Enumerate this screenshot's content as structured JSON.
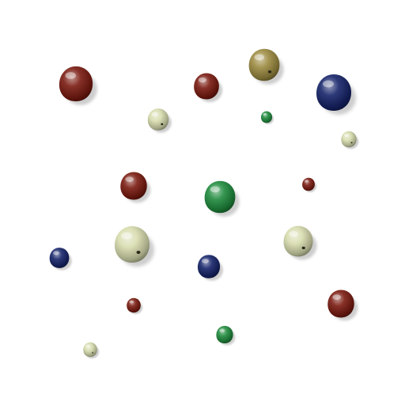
{
  "scene": {
    "kind": "rendered-beads-on-white",
    "background_color": "#ffffff",
    "shadow_color": "#bdbdbd",
    "bead_colors": {
      "red": "#7a1a10",
      "blue": "#16246a",
      "green": "#1e8a3c",
      "cream": "#d8dcae",
      "olive": "#9c8a40"
    },
    "beads": [
      {
        "color": "red"
      },
      {
        "color": "olive"
      },
      {
        "color": "red"
      },
      {
        "color": "blue"
      },
      {
        "color": "cream"
      },
      {
        "color": "green"
      },
      {
        "color": "cream"
      },
      {
        "color": "red"
      },
      {
        "color": "green"
      },
      {
        "color": "red"
      },
      {
        "color": "blue"
      },
      {
        "color": "cream"
      },
      {
        "color": "cream"
      },
      {
        "color": "blue"
      },
      {
        "color": "red"
      },
      {
        "color": "red"
      },
      {
        "color": "green"
      },
      {
        "color": "cream"
      }
    ]
  }
}
